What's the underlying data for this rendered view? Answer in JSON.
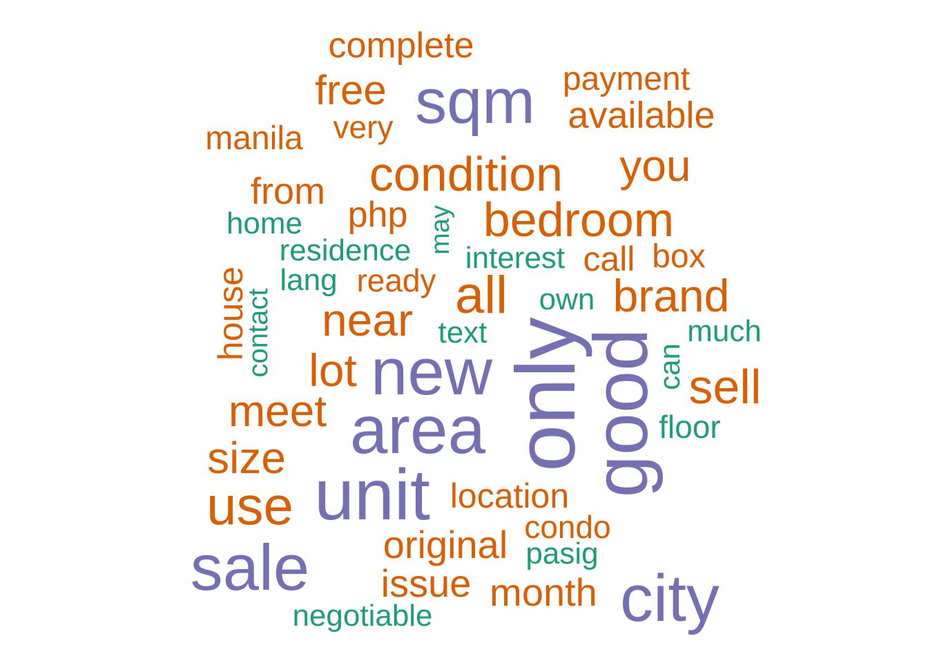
{
  "chart_data": {
    "type": "wordcloud",
    "colors": {
      "purple": "#7570b3",
      "orange": "#d95f02",
      "green": "#1b9e77"
    },
    "words": [
      {
        "text": "complete",
        "color": "orange"
      },
      {
        "text": "free",
        "color": "orange"
      },
      {
        "text": "sqm",
        "color": "purple"
      },
      {
        "text": "payment",
        "color": "orange"
      },
      {
        "text": "available",
        "color": "orange"
      },
      {
        "text": "very",
        "color": "orange"
      },
      {
        "text": "manila",
        "color": "orange"
      },
      {
        "text": "condition",
        "color": "orange"
      },
      {
        "text": "you",
        "color": "orange"
      },
      {
        "text": "from",
        "color": "orange"
      },
      {
        "text": "php",
        "color": "orange"
      },
      {
        "text": "may",
        "color": "green"
      },
      {
        "text": "bedroom",
        "color": "orange"
      },
      {
        "text": "home",
        "color": "green"
      },
      {
        "text": "residence",
        "color": "green"
      },
      {
        "text": "interest",
        "color": "green"
      },
      {
        "text": "call",
        "color": "orange"
      },
      {
        "text": "box",
        "color": "orange"
      },
      {
        "text": "lang",
        "color": "green"
      },
      {
        "text": "ready",
        "color": "orange"
      },
      {
        "text": "house",
        "color": "orange"
      },
      {
        "text": "contact",
        "color": "green"
      },
      {
        "text": "all",
        "color": "orange"
      },
      {
        "text": "own",
        "color": "green"
      },
      {
        "text": "brand",
        "color": "orange"
      },
      {
        "text": "near",
        "color": "orange"
      },
      {
        "text": "text",
        "color": "green"
      },
      {
        "text": "much",
        "color": "green"
      },
      {
        "text": "only",
        "color": "purple"
      },
      {
        "text": "good",
        "color": "purple"
      },
      {
        "text": "lot",
        "color": "orange"
      },
      {
        "text": "new",
        "color": "purple"
      },
      {
        "text": "can",
        "color": "green"
      },
      {
        "text": "sell",
        "color": "orange"
      },
      {
        "text": "meet",
        "color": "orange"
      },
      {
        "text": "area",
        "color": "purple"
      },
      {
        "text": "floor",
        "color": "green"
      },
      {
        "text": "size",
        "color": "orange"
      },
      {
        "text": "use",
        "color": "orange"
      },
      {
        "text": "unit",
        "color": "purple"
      },
      {
        "text": "location",
        "color": "orange"
      },
      {
        "text": "condo",
        "color": "orange"
      },
      {
        "text": "original",
        "color": "orange"
      },
      {
        "text": "pasig",
        "color": "green"
      },
      {
        "text": "sale",
        "color": "purple"
      },
      {
        "text": "issue",
        "color": "orange"
      },
      {
        "text": "month",
        "color": "orange"
      },
      {
        "text": "city",
        "color": "purple"
      },
      {
        "text": "negotiable",
        "color": "green"
      }
    ]
  }
}
